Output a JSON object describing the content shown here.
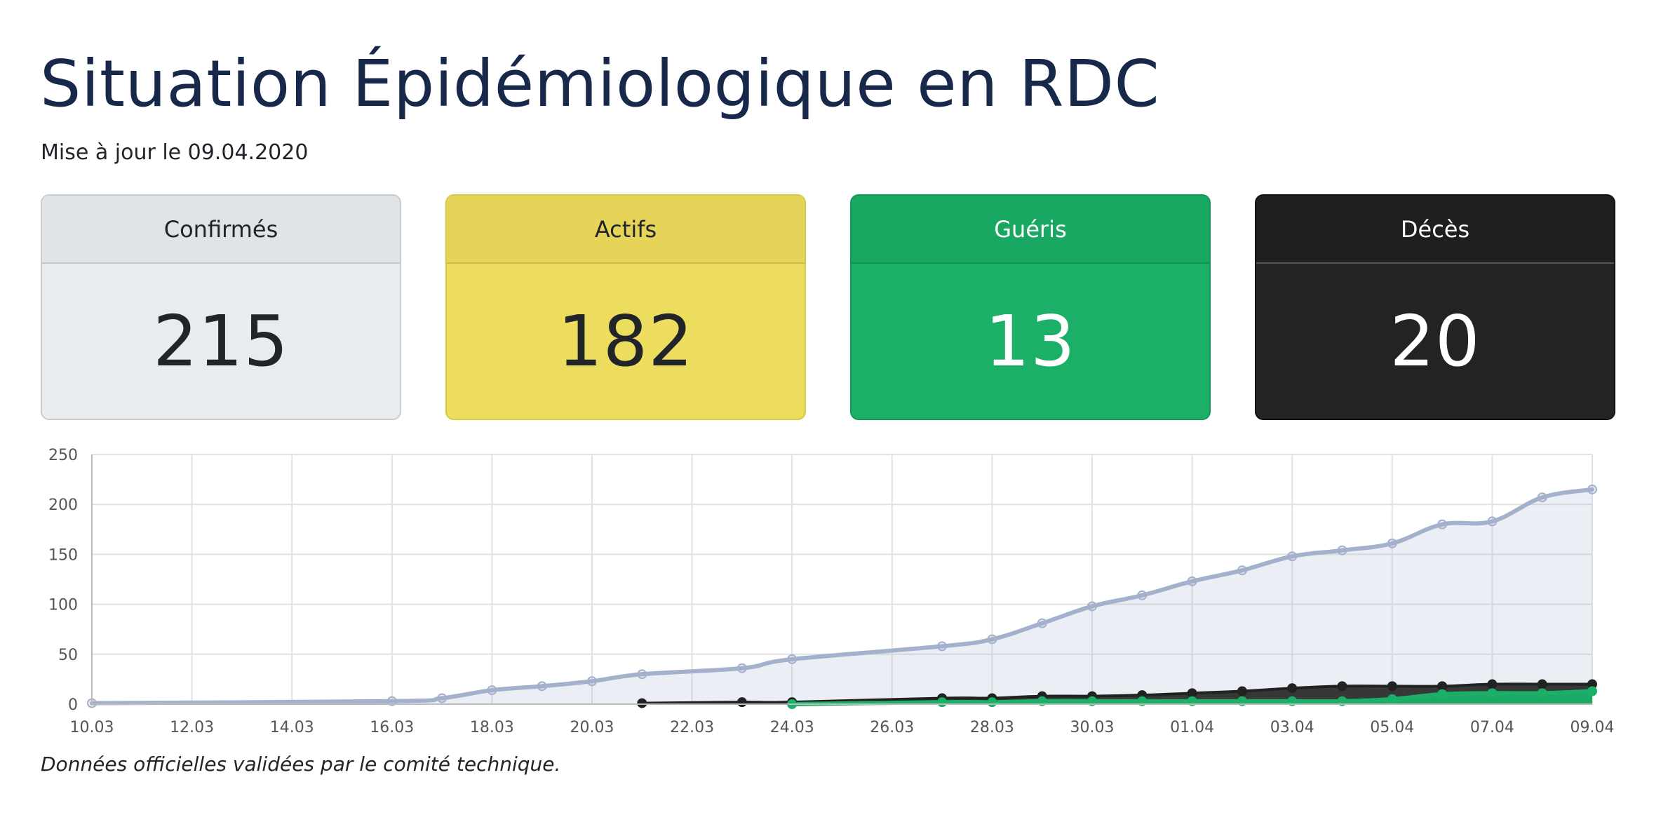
{
  "header": {
    "title": "Situation Épidémiologique en RDC",
    "update": "Mise à jour le 09.04.2020"
  },
  "cards": [
    {
      "label": "Confirmés",
      "value": "215"
    },
    {
      "label": "Actifs",
      "value": "182"
    },
    {
      "label": "Guéris",
      "value": "13"
    },
    {
      "label": "Décès",
      "value": "20"
    }
  ],
  "colors": {
    "confirmes": "#a3b1cc",
    "actifs": "#e9d85a",
    "gueris": "#1baf67",
    "deces": "#222222"
  },
  "chart_data": {
    "type": "area",
    "x": [
      "10.03",
      "11.03",
      "12.03",
      "13.03",
      "14.03",
      "15.03",
      "16.03",
      "17.03",
      "18.03",
      "19.03",
      "20.03",
      "21.03",
      "22.03",
      "23.03",
      "24.03",
      "25.03",
      "26.03",
      "27.03",
      "28.03",
      "29.03",
      "30.03",
      "31.03",
      "01.04",
      "02.04",
      "03.04",
      "04.04",
      "05.04",
      "06.04",
      "07.04",
      "08.04",
      "09.04"
    ],
    "x_tick_labels": [
      "10.03",
      "12.03",
      "14.03",
      "16.03",
      "18.03",
      "20.03",
      "22.03",
      "24.03",
      "26.03",
      "28.03",
      "30.03",
      "01.04",
      "03.04",
      "05.04",
      "07.04",
      "09.04"
    ],
    "y_ticks": [
      0,
      50,
      100,
      150,
      200,
      250
    ],
    "ylim": [
      0,
      250
    ],
    "grid": true,
    "series": [
      {
        "key": "confirmes",
        "values": [
          1,
          null,
          null,
          null,
          null,
          null,
          3,
          6,
          14,
          18,
          23,
          30,
          null,
          36,
          45,
          null,
          null,
          58,
          65,
          81,
          98,
          109,
          123,
          134,
          148,
          154,
          161,
          180,
          183,
          207,
          215
        ]
      },
      {
        "key": "deces",
        "values": [
          null,
          null,
          null,
          null,
          null,
          null,
          null,
          null,
          null,
          null,
          null,
          1,
          null,
          2,
          2,
          null,
          null,
          6,
          6,
          8,
          8,
          9,
          11,
          13,
          16,
          18,
          18,
          18,
          20,
          20,
          20
        ]
      },
      {
        "key": "gueris",
        "values": [
          null,
          null,
          null,
          null,
          null,
          null,
          null,
          null,
          null,
          null,
          null,
          null,
          null,
          null,
          0,
          null,
          null,
          2,
          2,
          3,
          3,
          3,
          3,
          3,
          3,
          3,
          5,
          10,
          11,
          11,
          13
        ]
      }
    ]
  },
  "footer": {
    "note": "Données officielles validées par le comité technique."
  }
}
